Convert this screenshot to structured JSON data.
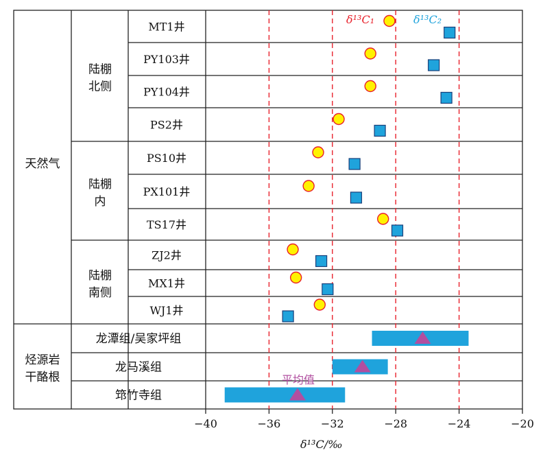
{
  "chart_data": {
    "type": "scatter",
    "title": "",
    "xlabel": "δ¹³C/‰",
    "xlim": [
      -40,
      -20
    ],
    "xticks": [
      -40,
      -36,
      -32,
      -28,
      -24,
      -20
    ],
    "tick_labels": [
      "−40",
      "−36",
      "−32",
      "−28",
      "−24",
      "−20"
    ],
    "reference_lines": [
      -36,
      -32,
      -28,
      -24
    ],
    "legend": {
      "c1": "δ¹³C₁",
      "c2": "δ¹³C₂",
      "mean": "平均值"
    },
    "colors": {
      "c1_fill": "#fff200",
      "c1_stroke": "#e8212b",
      "c2_fill": "#1fa3dc",
      "range_fill": "#1fa3dc",
      "mean_marker": "#b14fa0",
      "ref_line": "#e8212b",
      "legend_c1": "#e8212b",
      "legend_c2": "#1fa3dc",
      "legend_mean": "#b14fa0"
    },
    "groups": [
      {
        "label": "天然气",
        "subgroups": [
          {
            "label": [
              "陆棚",
              "北侧"
            ],
            "wells": [
              {
                "name": "MT1井",
                "c1": -28.4,
                "c2": -24.6
              },
              {
                "name": "PY103井",
                "c1": -29.6,
                "c2": -25.6
              },
              {
                "name": "PY104井",
                "c1": -29.6,
                "c2": -24.8
              },
              {
                "name": "PS2井",
                "c1": -31.6,
                "c2": -29.0
              }
            ]
          },
          {
            "label": [
              "陆棚",
              "内"
            ],
            "wells": [
              {
                "name": "PS10井",
                "c1": -32.9,
                "c2": -30.6
              },
              {
                "name": "PX101井",
                "c1": -33.5,
                "c2": -30.5
              },
              {
                "name": "TS17井",
                "c1": -28.8,
                "c2": -27.9
              }
            ]
          },
          {
            "label": [
              "陆棚",
              "南侧"
            ],
            "wells": [
              {
                "name": "ZJ2井",
                "c1": -34.5,
                "c2": -32.7
              },
              {
                "name": "MX1井",
                "c1": -34.3,
                "c2": -32.3
              },
              {
                "name": "WJ1井",
                "c1": -32.8,
                "c2": -34.8
              }
            ]
          }
        ]
      },
      {
        "label": [
          "烃源岩",
          "干酪根"
        ],
        "formations": [
          {
            "name": "龙潭组/吴家坪组",
            "min": -29.5,
            "max": -23.4,
            "mean": -26.3
          },
          {
            "name": "龙马溪组",
            "min": -32.0,
            "max": -28.5,
            "mean": -30.1
          },
          {
            "name": "筇竹寺组",
            "min": -38.8,
            "max": -31.2,
            "mean": -34.2
          }
        ]
      }
    ]
  }
}
